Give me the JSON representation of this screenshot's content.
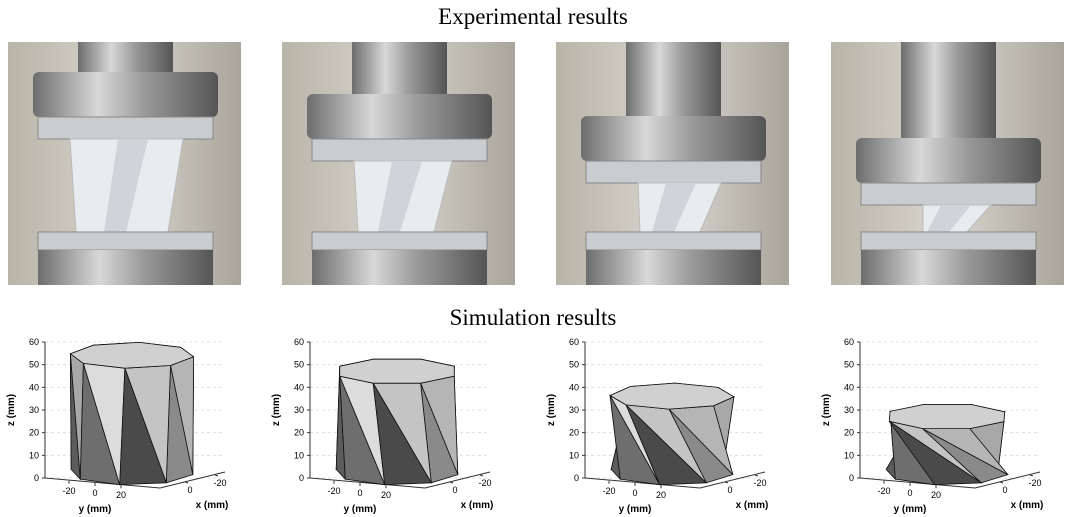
{
  "title_experimental": "Experimental results",
  "title_simulation": "Simulation results",
  "plots": [
    {
      "zlabel": "z (mm)",
      "ylabel": "y (mm)",
      "xlabel": "x (mm)",
      "zlim": [
        0,
        60
      ],
      "zticks": [
        0,
        10,
        20,
        30,
        40,
        50,
        60
      ],
      "yticks": [
        -20,
        0,
        20
      ],
      "xticks": [
        -20,
        0
      ],
      "height": 55
    },
    {
      "zlabel": "z (mm)",
      "ylabel": "y (mm)",
      "xlabel": "x (mm)",
      "zlim": [
        0,
        60
      ],
      "zticks": [
        0,
        10,
        20,
        30,
        40,
        50,
        60
      ],
      "yticks": [
        -20,
        0,
        20
      ],
      "xticks": [
        -20,
        0
      ],
      "height": 48
    },
    {
      "zlabel": "z (mm)",
      "ylabel": "y (mm)",
      "xlabel": "x (mm)",
      "zlim": [
        0,
        60
      ],
      "zticks": [
        0,
        10,
        20,
        30,
        40,
        50,
        60
      ],
      "yticks": [
        -20,
        0,
        20
      ],
      "xticks": [
        -20,
        0
      ],
      "height": 37
    },
    {
      "zlabel": "z (mm)",
      "ylabel": "y (mm)",
      "xlabel": "x (mm)",
      "zlim": [
        0,
        60
      ],
      "zticks": [
        0,
        10,
        20,
        30,
        40,
        50,
        60
      ],
      "yticks": [
        -20,
        0,
        20
      ],
      "xticks": [
        -20,
        0
      ],
      "height": 28
    }
  ]
}
